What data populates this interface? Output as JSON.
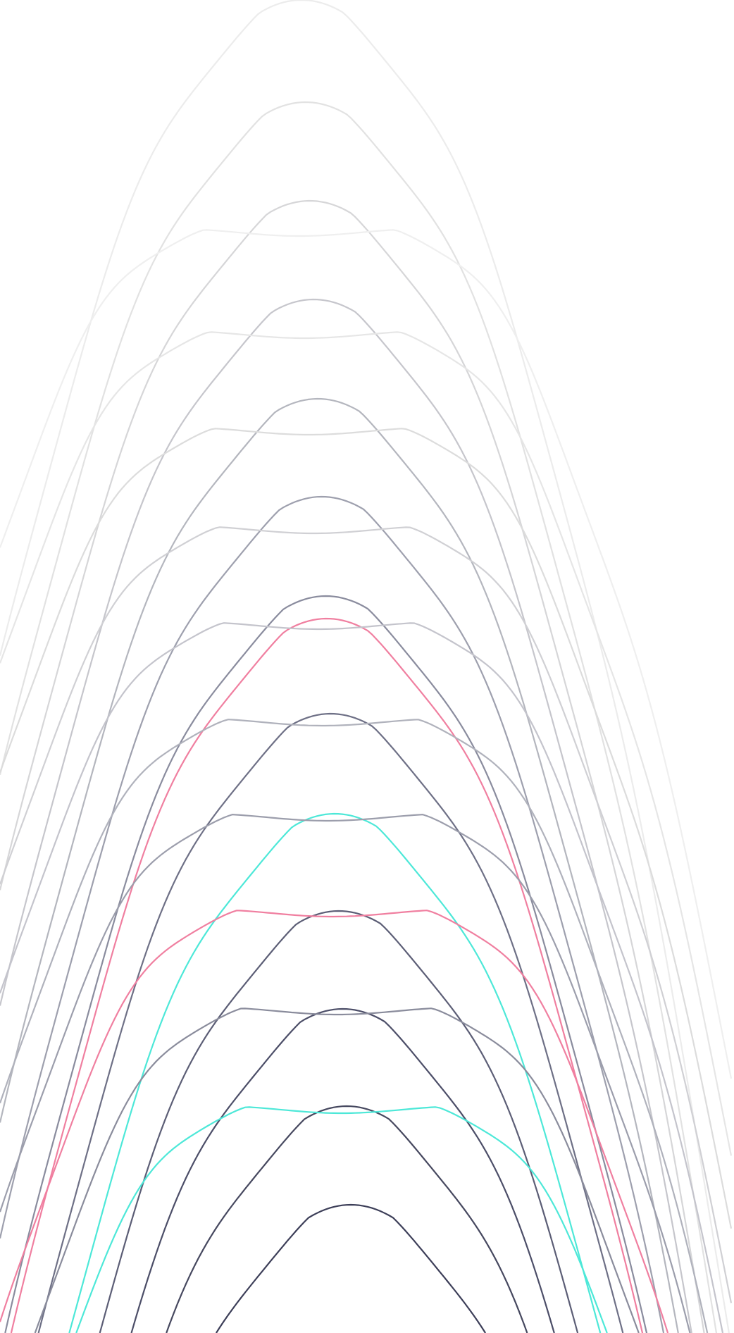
{
  "background": "#ffffff",
  "palette": {
    "accent_pink": "#f07fa0",
    "accent_cyan": "#4de8d8",
    "ink_dark": "#3c3e58",
    "ink_light": "#ececec"
  },
  "peak_wave_colors": [
    "#ececec",
    "#e2e2e2",
    "#d6d6d8",
    "#c6c6cc",
    "#b4b6be",
    "#9ea0ae",
    "#8a8c9e",
    "#f07fa0",
    "#6e7086",
    "#4de8d8",
    "#5c5e76",
    "#4c4e68",
    "#46485f",
    "#3c3e58"
  ],
  "plateau_wave_colors": [
    "#efefef",
    "#e6e6e6",
    "#dcdcdc",
    "#d0d0d4",
    "#c4c4cc",
    "#b0b2bc",
    "#9c9eac",
    "#f07fa0",
    "#8a8c9c",
    "#4de8d8"
  ]
}
